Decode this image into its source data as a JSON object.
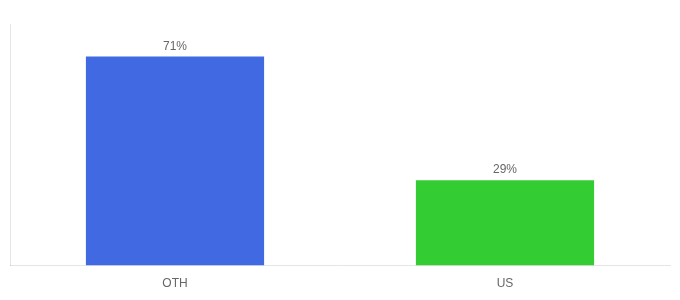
{
  "chart_data": {
    "type": "bar",
    "categories": [
      "OTH",
      "US"
    ],
    "values": [
      71,
      29
    ],
    "value_labels": [
      "71%",
      "29%"
    ],
    "colors": [
      "#4169e1",
      "#33cc33"
    ],
    "ylim": [
      0,
      82
    ],
    "grid": false,
    "data_labels": true,
    "tick_labels": "x"
  }
}
